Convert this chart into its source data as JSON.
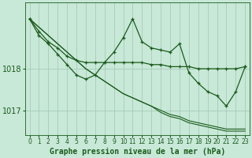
{
  "title": "Graphe pression niveau de la mer (hPa)",
  "background_color": "#c8e8d8",
  "plot_bg_color": "#c8e8d8",
  "grid_color": "#a0c8b0",
  "line_color": "#1a5c1a",
  "x_labels": [
    "0",
    "1",
    "2",
    "3",
    "4",
    "5",
    "6",
    "7",
    "8",
    "9",
    "10",
    "11",
    "12",
    "13",
    "14",
    "15",
    "16",
    "17",
    "18",
    "19",
    "20",
    "21",
    "22",
    "23"
  ],
  "hours": [
    0,
    1,
    2,
    3,
    4,
    5,
    6,
    7,
    8,
    9,
    10,
    11,
    12,
    13,
    14,
    15,
    16,
    17,
    18,
    19,
    20,
    21,
    22,
    23
  ],
  "line_flat": [
    1019.2,
    1018.9,
    1018.65,
    1018.5,
    1018.3,
    1018.2,
    1018.15,
    1018.15,
    1018.15,
    1018.15,
    1018.15,
    1018.15,
    1018.15,
    1018.1,
    1018.1,
    1018.05,
    1018.05,
    1018.05,
    1018.0,
    1018.0,
    1018.0,
    1018.0,
    1018.0,
    1018.05
  ],
  "line_wiggly": [
    1019.2,
    1018.8,
    1018.6,
    1018.35,
    1018.1,
    1017.85,
    1017.75,
    1017.85,
    1018.15,
    1018.4,
    1018.75,
    1019.2,
    1018.65,
    1018.5,
    1018.45,
    1018.4,
    1018.6,
    1017.9,
    1017.65,
    1017.45,
    1017.35,
    1017.1,
    1017.45,
    1018.05
  ],
  "line_trend1": [
    1019.2,
    1019.0,
    1018.8,
    1018.6,
    1018.4,
    1018.2,
    1018.0,
    1017.85,
    1017.7,
    1017.55,
    1017.4,
    1017.3,
    1017.2,
    1017.1,
    1017.0,
    1016.9,
    1016.85,
    1016.75,
    1016.7,
    1016.65,
    1016.6,
    1016.55,
    1016.55,
    1016.55
  ],
  "line_trend2": [
    1019.2,
    1019.0,
    1018.8,
    1018.6,
    1018.4,
    1018.2,
    1018.0,
    1017.85,
    1017.7,
    1017.55,
    1017.4,
    1017.3,
    1017.2,
    1017.1,
    1016.95,
    1016.85,
    1016.8,
    1016.7,
    1016.65,
    1016.6,
    1016.55,
    1016.5,
    1016.5,
    1016.5
  ],
  "ylim": [
    1016.4,
    1019.6
  ],
  "yticks": [
    1017,
    1018
  ],
  "ylabel_fontsize": 7,
  "xlabel_fontsize": 5.5,
  "title_fontsize": 7
}
